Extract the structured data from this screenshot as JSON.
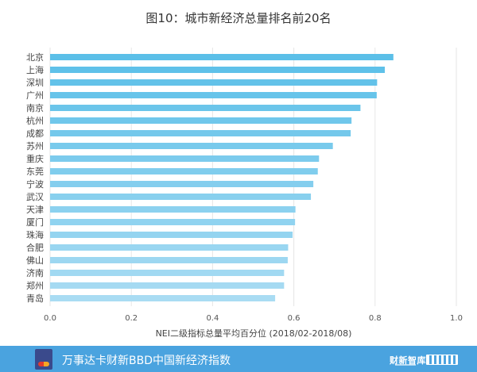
{
  "chart_data": {
    "type": "bar",
    "orientation": "horizontal",
    "title": "图10：城市新经济总量排名前20名",
    "xlabel": "NEI二级指标总量平均百分位 (2018/02-2018/08)",
    "xlim": [
      0,
      1.0
    ],
    "xticks": [
      "0.0",
      "0.2",
      "0.4",
      "0.6",
      "0.8",
      "1.0"
    ],
    "grid": true,
    "categories": [
      "北京",
      "上海",
      "深圳",
      "广州",
      "南京",
      "杭州",
      "成都",
      "苏州",
      "重庆",
      "东莞",
      "宁波",
      "武汉",
      "天津",
      "厦门",
      "珠海",
      "合肥",
      "佛山",
      "济南",
      "郑州",
      "青岛"
    ],
    "values": [
      0.845,
      0.824,
      0.805,
      0.804,
      0.764,
      0.742,
      0.74,
      0.696,
      0.662,
      0.659,
      0.648,
      0.642,
      0.604,
      0.603,
      0.597,
      0.586,
      0.585,
      0.576,
      0.576,
      0.554
    ],
    "bar_colors": {
      "top": "#5bbfe8",
      "bottom": "#a9dcf3"
    }
  },
  "footer": {
    "text": "万事达卡财新BBD中国新经济指数",
    "logo_left": "财新智库",
    "background": "#4aa3df"
  }
}
